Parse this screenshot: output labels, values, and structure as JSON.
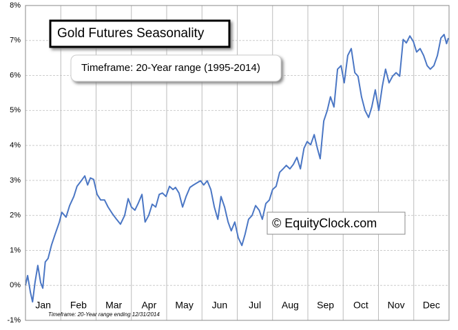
{
  "chart_data": {
    "type": "line",
    "title": "Gold Futures Seasonality",
    "subtitle": "Timeframe: 20-Year range (1995-2014)",
    "annotations": [
      "© EquityClock.com",
      "Timeframe: 20-Year range ending 12/31/2014"
    ],
    "xlim": [
      0,
      12
    ],
    "xticks": [
      {
        "value": 0.5,
        "label": "Jan"
      },
      {
        "value": 1.5,
        "label": "Feb"
      },
      {
        "value": 2.5,
        "label": "Mar"
      },
      {
        "value": 3.5,
        "label": "Apr"
      },
      {
        "value": 4.5,
        "label": "May"
      },
      {
        "value": 5.5,
        "label": "Jun"
      },
      {
        "value": 6.5,
        "label": "Jul"
      },
      {
        "value": 7.5,
        "label": "Aug"
      },
      {
        "value": 8.5,
        "label": "Sep"
      },
      {
        "value": 9.5,
        "label": "Oct"
      },
      {
        "value": 10.5,
        "label": "Nov"
      },
      {
        "value": 11.5,
        "label": "Dec"
      }
    ],
    "month_lines": [
      1,
      2,
      3,
      4,
      5,
      6,
      7,
      8,
      9,
      10,
      11
    ],
    "ylim": [
      -1,
      8
    ],
    "yticks": [
      {
        "value": -1,
        "label": "-1%"
      },
      {
        "value": 0,
        "label": "0%"
      },
      {
        "value": 1,
        "label": "1%"
      },
      {
        "value": 2,
        "label": "2%"
      },
      {
        "value": 3,
        "label": "3%"
      },
      {
        "value": 4,
        "label": "4%"
      },
      {
        "value": 5,
        "label": "5%"
      },
      {
        "value": 6,
        "label": "6%"
      },
      {
        "value": 7,
        "label": "7%"
      },
      {
        "value": 8,
        "label": "8%"
      }
    ],
    "grid": true,
    "series": [
      {
        "name": "Gold Futures",
        "color": "#4a76c4",
        "x": [
          0,
          0.06,
          0.14,
          0.2,
          0.27,
          0.35,
          0.43,
          0.49,
          0.56,
          0.64,
          0.74,
          0.84,
          0.96,
          1.03,
          1.15,
          1.25,
          1.37,
          1.46,
          1.58,
          1.68,
          1.76,
          1.84,
          1.93,
          2.03,
          2.13,
          2.24,
          2.34,
          2.46,
          2.58,
          2.69,
          2.81,
          2.91,
          3.0,
          3.1,
          3.2,
          3.3,
          3.39,
          3.49,
          3.59,
          3.69,
          3.79,
          3.88,
          3.98,
          4.08,
          4.18,
          4.25,
          4.35,
          4.45,
          4.55,
          4.66,
          4.76,
          4.86,
          4.96,
          5.05,
          5.15,
          5.25,
          5.35,
          5.45,
          5.54,
          5.64,
          5.74,
          5.83,
          5.93,
          6.03,
          6.13,
          6.22,
          6.32,
          6.42,
          6.52,
          6.62,
          6.71,
          6.81,
          6.91,
          7.0,
          7.1,
          7.2,
          7.3,
          7.39,
          7.49,
          7.59,
          7.69,
          7.79,
          7.89,
          7.98,
          8.08,
          8.18,
          8.27,
          8.35,
          8.45,
          8.55,
          8.64,
          8.74,
          8.84,
          8.94,
          9.03,
          9.13,
          9.23,
          9.33,
          9.42,
          9.52,
          9.62,
          9.72,
          9.81,
          9.91,
          10.01,
          10.11,
          10.2,
          10.3,
          10.4,
          10.5,
          10.6,
          10.7,
          10.79,
          10.89,
          10.99,
          11.08,
          11.18,
          11.28,
          11.38,
          11.47,
          11.57,
          11.67,
          11.77,
          11.86,
          11.93,
          11.98
        ],
        "values": [
          0,
          0.28,
          -0.2,
          -0.47,
          0.08,
          0.57,
          0.08,
          -0.08,
          0.67,
          0.77,
          1.16,
          1.46,
          1.81,
          2.09,
          1.95,
          2.28,
          2.54,
          2.83,
          2.99,
          3.13,
          2.87,
          3.07,
          3.03,
          2.6,
          2.44,
          2.44,
          2.24,
          2.05,
          1.89,
          1.75,
          2.0,
          2.48,
          2.24,
          2.15,
          2.36,
          2.6,
          1.81,
          2.0,
          2.32,
          2.24,
          2.6,
          2.64,
          2.54,
          2.83,
          2.74,
          2.8,
          2.64,
          2.24,
          2.54,
          2.8,
          2.87,
          2.93,
          2.99,
          2.87,
          2.99,
          2.74,
          2.24,
          1.89,
          2.54,
          2.24,
          1.81,
          1.56,
          1.81,
          1.36,
          1.14,
          1.46,
          1.89,
          2.0,
          2.28,
          2.15,
          1.89,
          2.34,
          2.44,
          2.74,
          2.83,
          3.23,
          3.33,
          3.43,
          3.33,
          3.46,
          3.66,
          3.33,
          3.92,
          4.11,
          4.02,
          4.31,
          3.92,
          3.62,
          4.7,
          5.0,
          5.39,
          5.1,
          6.18,
          6.28,
          5.79,
          6.57,
          6.77,
          6.08,
          5.98,
          5.39,
          5.0,
          4.8,
          5.1,
          5.59,
          5.0,
          5.69,
          6.18,
          5.79,
          5.98,
          6.08,
          5.98,
          7.03,
          6.93,
          7.13,
          6.97,
          6.67,
          6.77,
          6.57,
          6.28,
          6.18,
          6.28,
          6.57,
          7.07,
          7.17,
          6.91,
          7.07
        ]
      }
    ]
  }
}
